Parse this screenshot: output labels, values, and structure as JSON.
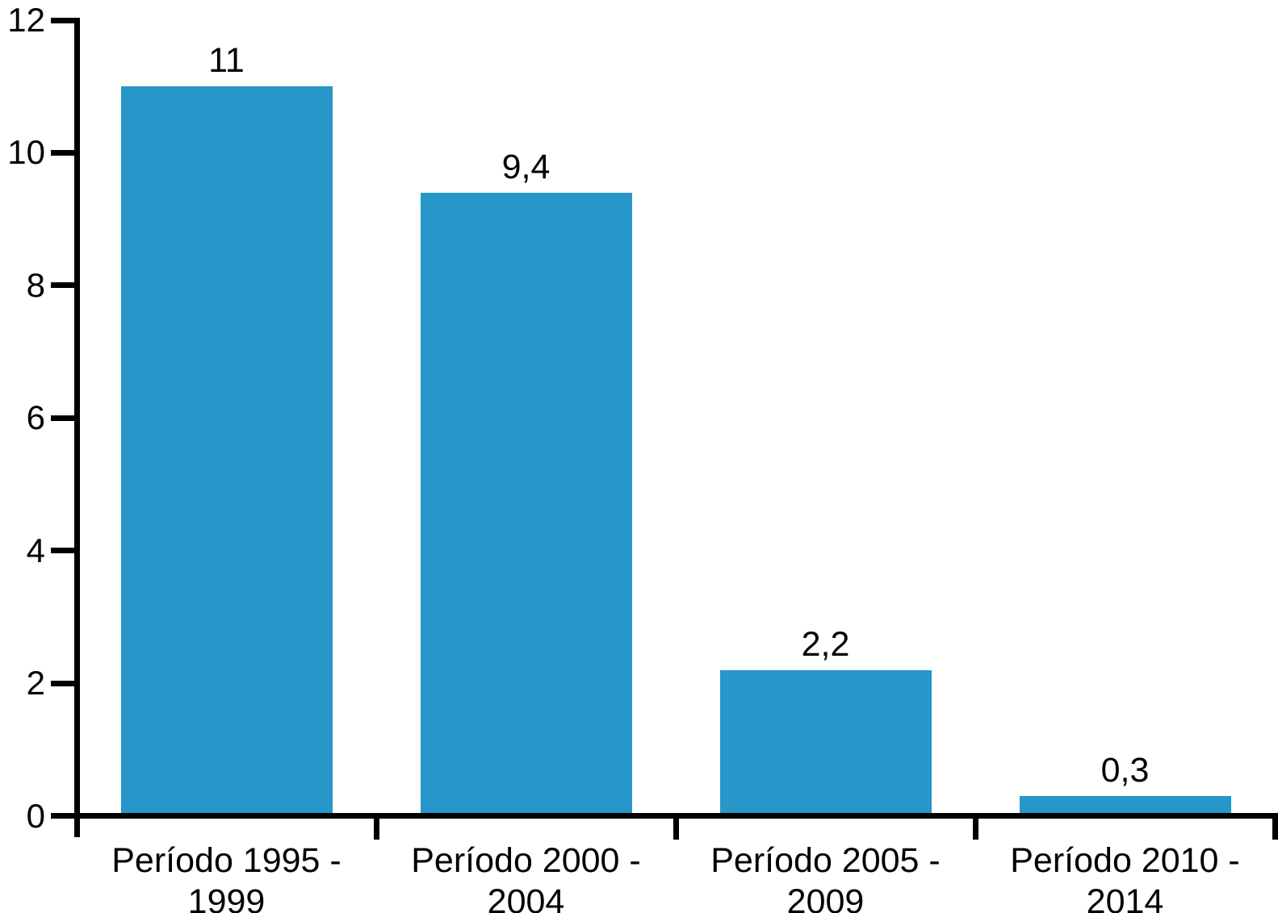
{
  "chart_data": {
    "type": "bar",
    "categories": [
      "Período 1995 -\n1999",
      "Período 2000 -\n2004",
      "Período 2005 -\n2009",
      "Período 2010 -\n2014"
    ],
    "values": [
      11,
      9.4,
      2.2,
      0.3
    ],
    "value_labels": [
      "11",
      "9,4",
      "2,2",
      "0,3"
    ],
    "title": "",
    "xlabel": "",
    "ylabel": "",
    "ylim": [
      0,
      12
    ],
    "yticks": [
      0,
      2,
      4,
      6,
      8,
      10,
      12
    ],
    "ytick_labels": [
      "0",
      "2",
      "4",
      "6",
      "8",
      "10",
      "12"
    ],
    "grid": false,
    "legend": "none",
    "bar_color": "#2796C8",
    "axis_color": "#000000",
    "text_color": "#000000",
    "background_color": "#FFFFFF"
  }
}
